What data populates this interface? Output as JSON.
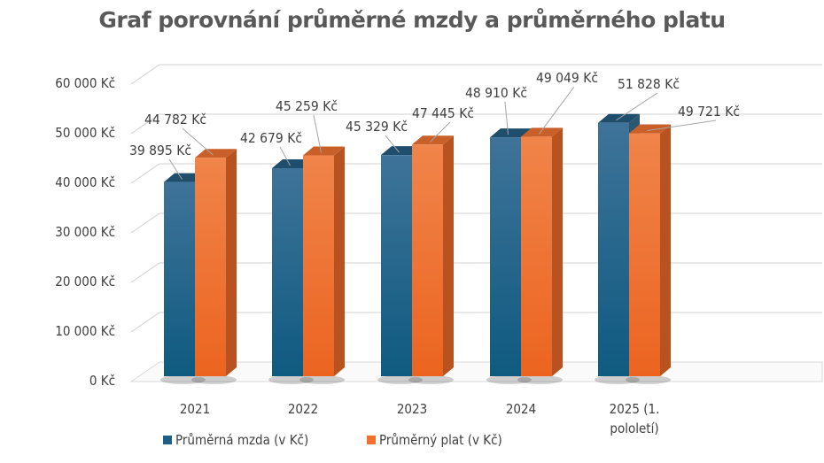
{
  "chart_data": {
    "type": "bar",
    "title": "Graf porovnání průměrné mzdy a průměrného platu",
    "categories": [
      [
        "2021"
      ],
      [
        "2022"
      ],
      [
        "2023"
      ],
      [
        "2024"
      ],
      [
        "2025 (1.",
        "pololetí)"
      ]
    ],
    "series": [
      {
        "name": "Průměrná mzda (v Kč)",
        "color": "#1f5f86",
        "values": [
          39895,
          42679,
          45329,
          48910,
          51828
        ]
      },
      {
        "name": "Průměrný plat  (v Kč)",
        "color": "#f07030",
        "values": [
          44782,
          45259,
          47445,
          49049,
          49721
        ]
      }
    ],
    "data_labels": [
      [
        "39 895 Kč",
        "42 679 Kč",
        "45 329 Kč",
        "48 910 Kč",
        "51 828 Kč"
      ],
      [
        "44 782 Kč",
        "45 259 Kč",
        "47 445 Kč",
        "49 049 Kč",
        "49 721 Kč"
      ]
    ],
    "yticks": [
      "0 Kč",
      "10 000 Kč",
      "20 000 Kč",
      "30 000 Kč",
      "40 000 Kč",
      "50 000 Kč",
      "60 000 Kč"
    ],
    "ylim": [
      0,
      60000
    ],
    "grid": true,
    "style": "3d-column",
    "legend": "bottom"
  }
}
